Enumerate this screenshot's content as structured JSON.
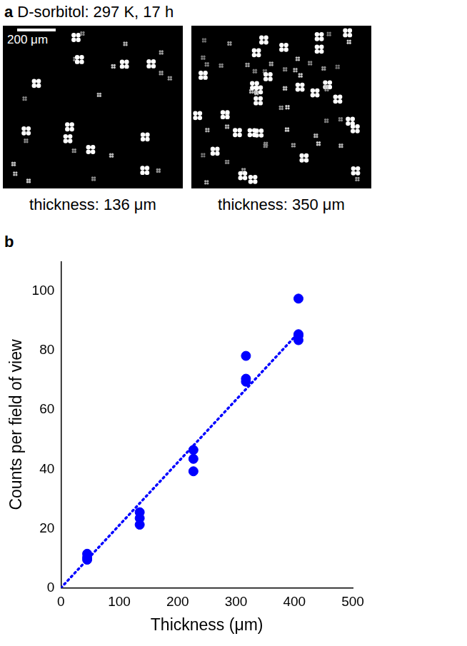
{
  "panel_a": {
    "label": "a",
    "title": "D-sorbitol: 297 K, 17 h",
    "scale_bar": "200 μm",
    "images": [
      {
        "caption": "thickness: 136 μm"
      },
      {
        "caption": "thickness: 350 μm"
      }
    ]
  },
  "chart_data": {
    "type": "scatter",
    "panel_label": "b",
    "x_label": "Thickness (μm)",
    "y_label": "Counts per field of view",
    "series": [
      {
        "type": "scatter",
        "marker": "circle",
        "color": "#0000ff",
        "x": [
          45,
          45,
          45,
          135,
          135,
          135,
          227,
          227,
          227,
          317,
          317,
          317,
          407,
          407,
          407,
          407
        ],
        "values": [
          11.5,
          10.3,
          9.5,
          25.5,
          23.5,
          21.3,
          46.5,
          43.5,
          39.3,
          78.2,
          70.5,
          69.5,
          97.5,
          85.5,
          85,
          83.5
        ]
      },
      {
        "type": "line",
        "line_style": "dotted",
        "color": "#0000ff",
        "x": [
          0,
          407
        ],
        "values": [
          0,
          86
        ]
      }
    ],
    "xlim": [
      0,
      500
    ],
    "xticks": [
      0,
      100,
      200,
      300,
      400,
      500
    ],
    "ylim": [
      0,
      110
    ],
    "yticks": [
      0,
      20,
      40,
      60,
      80,
      100
    ],
    "grid": false
  }
}
